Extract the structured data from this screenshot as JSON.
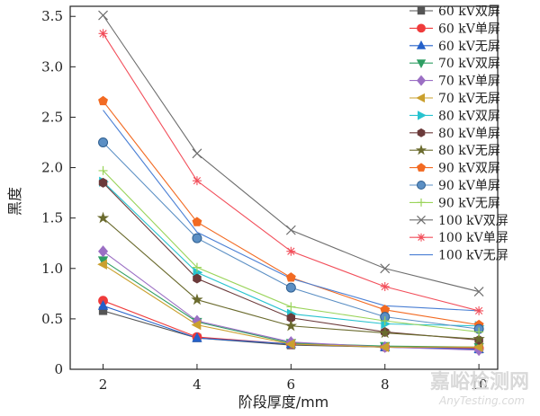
{
  "chart_data": {
    "type": "line",
    "xlabel": "阶段厚度/mm",
    "ylabel": "黑度",
    "x": [
      2,
      4,
      6,
      8,
      10
    ],
    "xlim": [
      1.3,
      10.4
    ],
    "ylim": [
      0,
      3.6
    ],
    "xticks": [
      "2",
      "4",
      "6",
      "8",
      "10"
    ],
    "yticks": [
      "0",
      "0.5",
      "1.0",
      "1.5",
      "2.0",
      "2.5",
      "3.0",
      "3.5"
    ],
    "grid": false,
    "legend_position": "right",
    "series": [
      {
        "name": "60 kV双屏",
        "values": [
          0.58,
          0.31,
          0.24,
          0.22,
          0.2
        ],
        "color": "#555555",
        "marker": "square"
      },
      {
        "name": "60 kV单屏",
        "values": [
          0.68,
          0.32,
          0.25,
          0.22,
          0.21
        ],
        "color": "#ef3b3b",
        "marker": "circle"
      },
      {
        "name": "60 kV无屏",
        "values": [
          0.63,
          0.31,
          0.25,
          0.22,
          0.2
        ],
        "color": "#2460c9",
        "marker": "triangle-up"
      },
      {
        "name": "70 kV双屏",
        "values": [
          1.08,
          0.47,
          0.26,
          0.23,
          0.22
        ],
        "color": "#2e9e63",
        "marker": "triangle-down"
      },
      {
        "name": "70 kV单屏",
        "values": [
          1.17,
          0.48,
          0.27,
          0.22,
          0.19
        ],
        "color": "#9b6fc4",
        "marker": "diamond"
      },
      {
        "name": "70 kV无屏",
        "values": [
          1.04,
          0.44,
          0.25,
          0.22,
          0.22
        ],
        "color": "#caa02e",
        "marker": "triangle-left"
      },
      {
        "name": "80 kV双屏",
        "values": [
          1.86,
          0.96,
          0.55,
          0.45,
          0.43
        ],
        "color": "#28c3cf",
        "marker": "triangle-right"
      },
      {
        "name": "80 kV单屏",
        "values": [
          1.85,
          0.9,
          0.51,
          0.37,
          0.29
        ],
        "color": "#6b3a3a",
        "marker": "hexagon"
      },
      {
        "name": "80 kV无屏",
        "values": [
          1.5,
          0.69,
          0.43,
          0.36,
          0.3
        ],
        "color": "#6b6b2e",
        "marker": "star"
      },
      {
        "name": "90 kV双屏",
        "values": [
          2.66,
          1.46,
          0.91,
          0.59,
          0.44
        ],
        "color": "#f26a22",
        "marker": "pentagon"
      },
      {
        "name": "90 kV单屏",
        "values": [
          2.25,
          1.3,
          0.81,
          0.52,
          0.4
        ],
        "color": "#5b8fc4",
        "marker": "circle-shaded"
      },
      {
        "name": "90 kV无屏",
        "values": [
          1.97,
          1.01,
          0.62,
          0.48,
          0.37
        ],
        "color": "#9ad45a",
        "marker": "plus"
      },
      {
        "name": "100 kV双屏",
        "values": [
          3.51,
          2.14,
          1.38,
          1.0,
          0.77
        ],
        "color": "#6e6e6e",
        "marker": "x"
      },
      {
        "name": "100 kV单屏",
        "values": [
          3.33,
          1.87,
          1.17,
          0.82,
          0.58
        ],
        "color": "#f24e5a",
        "marker": "asterisk"
      },
      {
        "name": "100 kV无屏",
        "values": [
          2.57,
          1.36,
          0.9,
          0.63,
          0.58
        ],
        "color": "#4a7fd4",
        "marker": "none"
      }
    ]
  },
  "watermark": {
    "line1": "嘉峪检测网",
    "line2": "AnyTesting.com"
  }
}
